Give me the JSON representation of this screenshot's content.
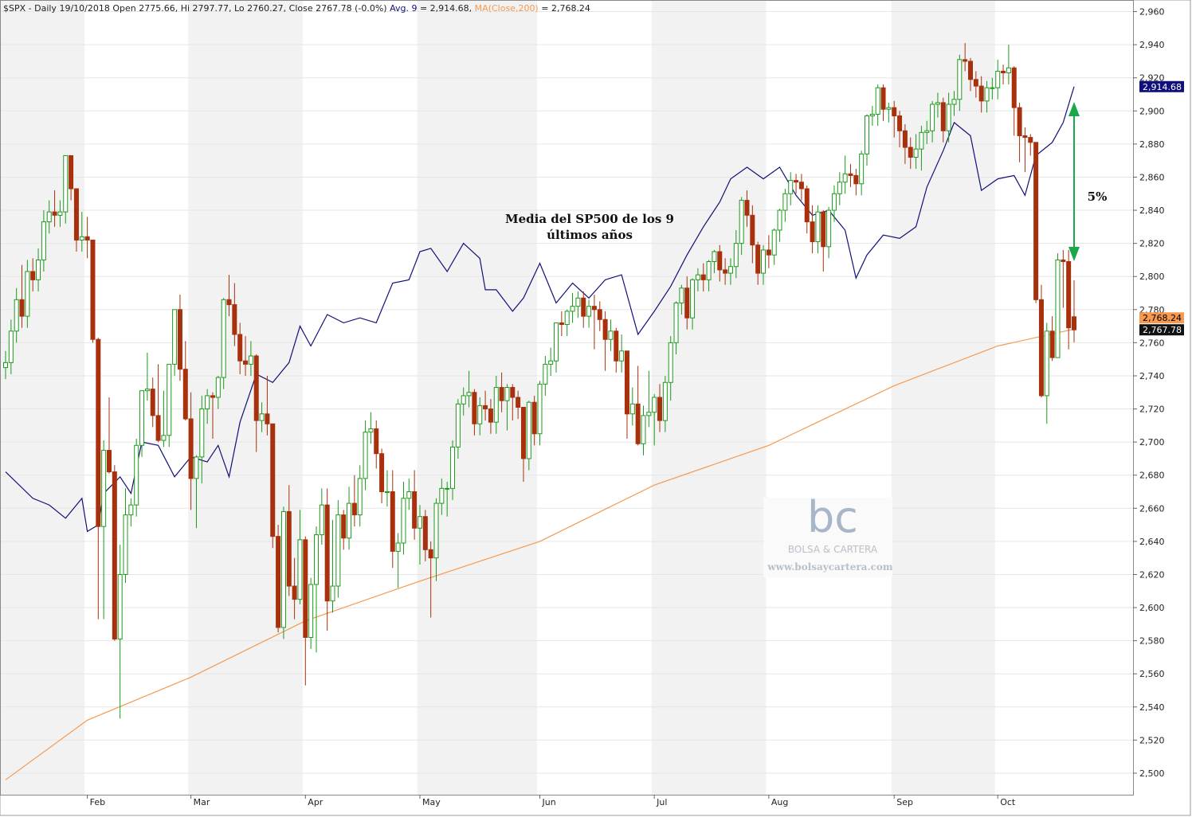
{
  "chart_data": {
    "type": "candlestick",
    "header": "$SPX - Daily 19/10/2018 Open 2775.66, Hi 2797.77, Lo 2760.27, Close 2767.78 (-0.0%)",
    "categories": [
      null,
      null,
      null,
      null,
      null,
      null,
      null,
      null,
      null,
      null,
      null,
      null,
      null,
      null,
      null,
      "Feb",
      null,
      null,
      null,
      null,
      null,
      null,
      null,
      null,
      null,
      null,
      null,
      null,
      null,
      null,
      null,
      null,
      null,
      null,
      "Mar",
      null,
      null,
      null,
      null,
      null,
      null,
      null,
      null,
      null,
      null,
      null,
      null,
      null,
      null,
      null,
      null,
      null,
      null,
      null,
      null,
      "Apr",
      null,
      null,
      null,
      null,
      null,
      null,
      null,
      null,
      null,
      null,
      null,
      null,
      null,
      null,
      null,
      null,
      null,
      null,
      null,
      null,
      "May",
      null,
      null,
      null,
      null,
      null,
      null,
      null,
      null,
      null,
      null,
      null,
      null,
      null,
      null,
      null,
      null,
      null,
      null,
      null,
      null,
      null,
      "Jun",
      null,
      null,
      null,
      null,
      null,
      null,
      null,
      null,
      null,
      null,
      null,
      null,
      null,
      null,
      null,
      null,
      null,
      null,
      null,
      null,
      "Jul",
      null,
      null,
      null,
      null,
      null,
      null,
      null,
      null,
      null,
      null,
      null,
      null,
      null,
      null,
      null,
      null,
      null,
      null,
      null,
      null,
      "Aug",
      null,
      null,
      null,
      null,
      null,
      null,
      null,
      null,
      null,
      null,
      null,
      null,
      null,
      null,
      null,
      null,
      null,
      null,
      null,
      null,
      null,
      null,
      "Sep",
      null,
      null,
      null,
      null,
      null,
      null,
      null,
      null,
      null,
      null,
      null,
      null,
      null,
      null,
      null,
      null,
      null,
      null,
      "Oct",
      null,
      null,
      null,
      null,
      null,
      null,
      null,
      null,
      null,
      null,
      null,
      null,
      null,
      null
    ],
    "ohlc": {
      "up_color": "#1c9a1c",
      "down_color": "#a8300c",
      "last_label": "2,767.78",
      "open": [
        2745,
        2748,
        2767,
        2786,
        2776,
        2803,
        2798,
        2810,
        2833,
        2839,
        2837,
        2839,
        2873,
        2853,
        2822,
        2824,
        2822,
        2762,
        2649,
        2695,
        2682,
        2581,
        2620,
        2656,
        2662,
        2698,
        2731,
        2732,
        2716,
        2701,
        2704,
        2747,
        2780,
        2744,
        2714,
        2678,
        2691,
        2720,
        2728,
        2727,
        2739,
        2786,
        2783,
        2765,
        2749,
        2747,
        2752,
        2713,
        2717,
        2711,
        2643,
        2588,
        2658,
        2613,
        2605,
        2641,
        2582,
        2614,
        2644,
        2662,
        2604,
        2613,
        2656,
        2642,
        2663,
        2656,
        2678,
        2706,
        2708,
        2693,
        2670,
        2670,
        2634,
        2639,
        2666,
        2670,
        2648,
        2655,
        2635,
        2630,
        2663,
        2672,
        2672,
        2697,
        2723,
        2728,
        2730,
        2711,
        2722,
        2720,
        2712,
        2733,
        2725,
        2733,
        2727,
        2721,
        2690,
        2724,
        2705,
        2735,
        2747,
        2749,
        2772,
        2771,
        2779,
        2782,
        2787,
        2776,
        2782,
        2780,
        2774,
        2762,
        2767,
        2749,
        2755,
        2717,
        2723,
        2699,
        2716,
        2718,
        2727,
        2713,
        2736,
        2760,
        2784,
        2793,
        2775,
        2798,
        2801,
        2798,
        2809,
        2815,
        2804,
        2802,
        2806,
        2820,
        2846,
        2837,
        2819,
        2802,
        2816,
        2813,
        2828,
        2840,
        2850,
        2858,
        2857,
        2853,
        2833,
        2821,
        2839,
        2818,
        2840,
        2850,
        2857,
        2862,
        2861,
        2856,
        2874,
        2897,
        2898,
        2914,
        2901,
        2902,
        2897,
        2888,
        2878,
        2872,
        2877,
        2887,
        2888,
        2904,
        2905,
        2888,
        2904,
        2907,
        2931,
        2930,
        2919,
        2915,
        2906,
        2914,
        2914,
        2924,
        2923,
        2926,
        2902,
        2885,
        2884,
        2881,
        2786,
        2728,
        2767,
        2751,
        2810,
        2809,
        2775.66
      ],
      "high": [
        2755,
        2774,
        2793,
        2807,
        2810,
        2811,
        2817,
        2840,
        2846,
        2852,
        2846,
        2873,
        2870,
        2838,
        2839,
        2836,
        2822,
        2763,
        2701,
        2727,
        2686,
        2638,
        2672,
        2666,
        2702,
        2731,
        2754,
        2739,
        2747,
        2731,
        2747,
        2780,
        2789,
        2761,
        2730,
        2692,
        2728,
        2732,
        2730,
        2740,
        2787,
        2801,
        2796,
        2772,
        2764,
        2761,
        2753,
        2724,
        2740,
        2711,
        2650,
        2661,
        2674,
        2630,
        2659,
        2643,
        2618,
        2649,
        2672,
        2672,
        2653,
        2665,
        2659,
        2673,
        2680,
        2686,
        2713,
        2718,
        2713,
        2696,
        2683,
        2683,
        2645,
        2676,
        2678,
        2683,
        2662,
        2659,
        2640,
        2666,
        2678,
        2676,
        2701,
        2726,
        2733,
        2743,
        2732,
        2727,
        2731,
        2726,
        2740,
        2742,
        2735,
        2735,
        2731,
        2721,
        2725,
        2728,
        2737,
        2752,
        2757,
        2772,
        2779,
        2780,
        2790,
        2791,
        2791,
        2786,
        2789,
        2785,
        2779,
        2774,
        2769,
        2765,
        2755,
        2733,
        2746,
        2722,
        2743,
        2729,
        2735,
        2740,
        2764,
        2785,
        2795,
        2800,
        2799,
        2805,
        2808,
        2810,
        2816,
        2819,
        2811,
        2811,
        2828,
        2848,
        2852,
        2843,
        2821,
        2819,
        2825,
        2829,
        2841,
        2853,
        2863,
        2862,
        2862,
        2855,
        2843,
        2843,
        2840,
        2842,
        2855,
        2863,
        2873,
        2868,
        2865,
        2876,
        2898,
        2903,
        2916,
        2916,
        2905,
        2906,
        2900,
        2892,
        2884,
        2886,
        2891,
        2894,
        2906,
        2911,
        2908,
        2911,
        2912,
        2934,
        2941,
        2932,
        2924,
        2921,
        2918,
        2920,
        2931,
        2928,
        2940,
        2927,
        2905,
        2890,
        2886,
        2881,
        2795,
        2772,
        2776,
        2814,
        2816,
        2816,
        2797.77
      ],
      "low": [
        2738,
        2741,
        2760,
        2769,
        2769,
        2791,
        2791,
        2803,
        2826,
        2830,
        2830,
        2832,
        2846,
        2815,
        2815,
        2811,
        2760,
        2593,
        2593,
        2681,
        2580,
        2533,
        2615,
        2649,
        2655,
        2691,
        2725,
        2709,
        2700,
        2697,
        2697,
        2740,
        2737,
        2713,
        2659,
        2648,
        2675,
        2711,
        2702,
        2720,
        2732,
        2776,
        2758,
        2741,
        2740,
        2740,
        2694,
        2706,
        2704,
        2636,
        2585,
        2581,
        2607,
        2593,
        2602,
        2553,
        2575,
        2573,
        2638,
        2586,
        2597,
        2606,
        2635,
        2635,
        2649,
        2649,
        2671,
        2699,
        2684,
        2663,
        2661,
        2624,
        2612,
        2632,
        2659,
        2641,
        2626,
        2628,
        2594,
        2616,
        2656,
        2655,
        2665,
        2690,
        2716,
        2721,
        2704,
        2704,
        2713,
        2705,
        2705,
        2718,
        2707,
        2713,
        2714,
        2676,
        2683,
        2698,
        2698,
        2728,
        2740,
        2742,
        2764,
        2764,
        2772,
        2775,
        2769,
        2769,
        2756,
        2767,
        2743,
        2755,
        2742,
        2742,
        2702,
        2710,
        2698,
        2692,
        2709,
        2698,
        2706,
        2706,
        2725,
        2753,
        2777,
        2768,
        2768,
        2791,
        2791,
        2791,
        2802,
        2797,
        2795,
        2795,
        2799,
        2813,
        2830,
        2808,
        2795,
        2795,
        2805,
        2807,
        2821,
        2833,
        2843,
        2850,
        2846,
        2826,
        2814,
        2814,
        2803,
        2811,
        2833,
        2843,
        2850,
        2854,
        2849,
        2849,
        2867,
        2891,
        2891,
        2894,
        2893,
        2884,
        2878,
        2868,
        2865,
        2865,
        2864,
        2880,
        2881,
        2896,
        2881,
        2881,
        2897,
        2900,
        2924,
        2912,
        2908,
        2899,
        2899,
        2907,
        2907,
        2916,
        2916,
        2885,
        2869,
        2863,
        2873,
        2784,
        2727,
        2711,
        2749,
        2751,
        2781,
        2756,
        2760.27
      ],
      "close": [
        2748,
        2767,
        2786,
        2776,
        2803,
        2798,
        2810,
        2833,
        2839,
        2837,
        2839,
        2873,
        2853,
        2822,
        2824,
        2822,
        2762,
        2649,
        2695,
        2682,
        2581,
        2620,
        2656,
        2662,
        2698,
        2731,
        2732,
        2716,
        2701,
        2704,
        2747,
        2780,
        2744,
        2714,
        2678,
        2691,
        2720,
        2728,
        2727,
        2739,
        2786,
        2783,
        2765,
        2749,
        2747,
        2752,
        2713,
        2717,
        2711,
        2643,
        2588,
        2658,
        2613,
        2605,
        2641,
        2582,
        2614,
        2644,
        2662,
        2604,
        2613,
        2656,
        2642,
        2663,
        2656,
        2678,
        2706,
        2708,
        2693,
        2670,
        2670,
        2634,
        2639,
        2666,
        2670,
        2648,
        2655,
        2635,
        2630,
        2663,
        2672,
        2672,
        2697,
        2723,
        2728,
        2730,
        2711,
        2722,
        2720,
        2712,
        2733,
        2725,
        2733,
        2727,
        2721,
        2690,
        2724,
        2705,
        2735,
        2747,
        2749,
        2772,
        2771,
        2779,
        2782,
        2787,
        2776,
        2782,
        2780,
        2774,
        2762,
        2767,
        2749,
        2755,
        2717,
        2723,
        2699,
        2716,
        2718,
        2727,
        2713,
        2736,
        2760,
        2784,
        2793,
        2775,
        2798,
        2801,
        2798,
        2809,
        2815,
        2804,
        2802,
        2806,
        2820,
        2846,
        2837,
        2819,
        2802,
        2816,
        2813,
        2828,
        2840,
        2850,
        2858,
        2857,
        2853,
        2833,
        2821,
        2839,
        2818,
        2840,
        2850,
        2857,
        2862,
        2861,
        2856,
        2874,
        2897,
        2898,
        2914,
        2901,
        2902,
        2897,
        2888,
        2878,
        2872,
        2877,
        2887,
        2888,
        2904,
        2905,
        2888,
        2904,
        2907,
        2931,
        2930,
        2919,
        2915,
        2906,
        2914,
        2914,
        2924,
        2923,
        2926,
        2902,
        2885,
        2884,
        2881,
        2786,
        2728,
        2767,
        2751,
        2810,
        2809,
        2769,
        2767.78
      ]
    },
    "overlays": [
      {
        "name": "Avg. 9",
        "header_value": "= 2,914.68,",
        "color": "#10107a",
        "last_label": "2,914.68",
        "x": [
          0,
          5,
          8,
          11,
          14,
          15,
          17,
          18,
          21,
          23,
          25,
          28,
          31,
          34,
          37,
          39,
          41,
          43,
          46,
          49,
          52,
          54,
          56,
          59,
          62,
          65,
          68,
          71,
          74,
          76,
          78,
          81,
          84,
          87,
          88,
          90,
          93,
          95,
          98,
          101,
          104,
          107,
          110,
          113,
          116,
          119,
          122,
          125,
          128,
          131,
          133,
          136,
          139,
          142,
          145,
          148,
          151,
          154,
          156,
          158,
          161,
          164,
          167,
          169,
          172,
          174,
          177,
          179,
          182,
          185,
          187,
          189,
          192,
          194,
          196
        ],
        "values": [
          2682,
          2666,
          2662,
          2654,
          2666,
          2646,
          2650,
          2669,
          2679,
          2669,
          2700,
          2698,
          2679,
          2691,
          2688,
          2698,
          2679,
          2712,
          2741,
          2736,
          2748,
          2770,
          2758,
          2777,
          2772,
          2775,
          2772,
          2796,
          2798,
          2815,
          2817,
          2803,
          2820,
          2811,
          2792,
          2792,
          2779,
          2787,
          2808,
          2784,
          2796,
          2787,
          2798,
          2801,
          2765,
          2779,
          2794,
          2813,
          2830,
          2845,
          2859,
          2866,
          2859,
          2866,
          2849,
          2837,
          2840,
          2828,
          2799,
          2813,
          2825,
          2823,
          2830,
          2854,
          2876,
          2893,
          2885,
          2852,
          2859,
          2861,
          2849,
          2873,
          2881,
          2893,
          2914.68
        ]
      },
      {
        "name": "MA(Close,200)",
        "header_value": "= 2,768.24",
        "color": "#f59a50",
        "last_label": "2,768.24",
        "x": [
          0,
          15,
          34,
          55,
          76,
          98,
          119,
          140,
          163,
          182,
          196
        ],
        "values": [
          2496,
          2532,
          2558,
          2592,
          2616,
          2640,
          2674,
          2698,
          2734,
          2758,
          2768.24
        ]
      }
    ],
    "ylim": [
      2487,
      2967
    ],
    "yticks": [
      {
        "value": 2500,
        "label": "2,500"
      },
      {
        "value": 2520,
        "label": "2,520"
      },
      {
        "value": 2540,
        "label": "2,540"
      },
      {
        "value": 2560,
        "label": "2,560"
      },
      {
        "value": 2580,
        "label": "2,580"
      },
      {
        "value": 2600,
        "label": "2,600"
      },
      {
        "value": 2620,
        "label": "2,620"
      },
      {
        "value": 2640,
        "label": "2,640"
      },
      {
        "value": 2660,
        "label": "2,660"
      },
      {
        "value": 2680,
        "label": "2,680"
      },
      {
        "value": 2700,
        "label": "2,700"
      },
      {
        "value": 2720,
        "label": "2,720"
      },
      {
        "value": 2740,
        "label": "2,740"
      },
      {
        "value": 2760,
        "label": "2,760"
      },
      {
        "value": 2780,
        "label": "2,780"
      },
      {
        "value": 2800,
        "label": "2,800"
      },
      {
        "value": 2820,
        "label": "2,820"
      },
      {
        "value": 2840,
        "label": "2,840"
      },
      {
        "value": 2860,
        "label": "2,860"
      },
      {
        "value": 2880,
        "label": "2,880"
      },
      {
        "value": 2900,
        "label": "2,900"
      },
      {
        "value": 2920,
        "label": "2,920"
      },
      {
        "value": 2940,
        "label": "2,940"
      },
      {
        "value": 2960,
        "label": "2,960"
      }
    ],
    "grid": true,
    "annotations": [
      "Media del SP500 de los 9",
      "últimos años",
      "5%"
    ],
    "watermark": {
      "logo": "bc",
      "name": "BOLSA & CARTERA",
      "url": "www.bolsaycartera.com"
    }
  }
}
